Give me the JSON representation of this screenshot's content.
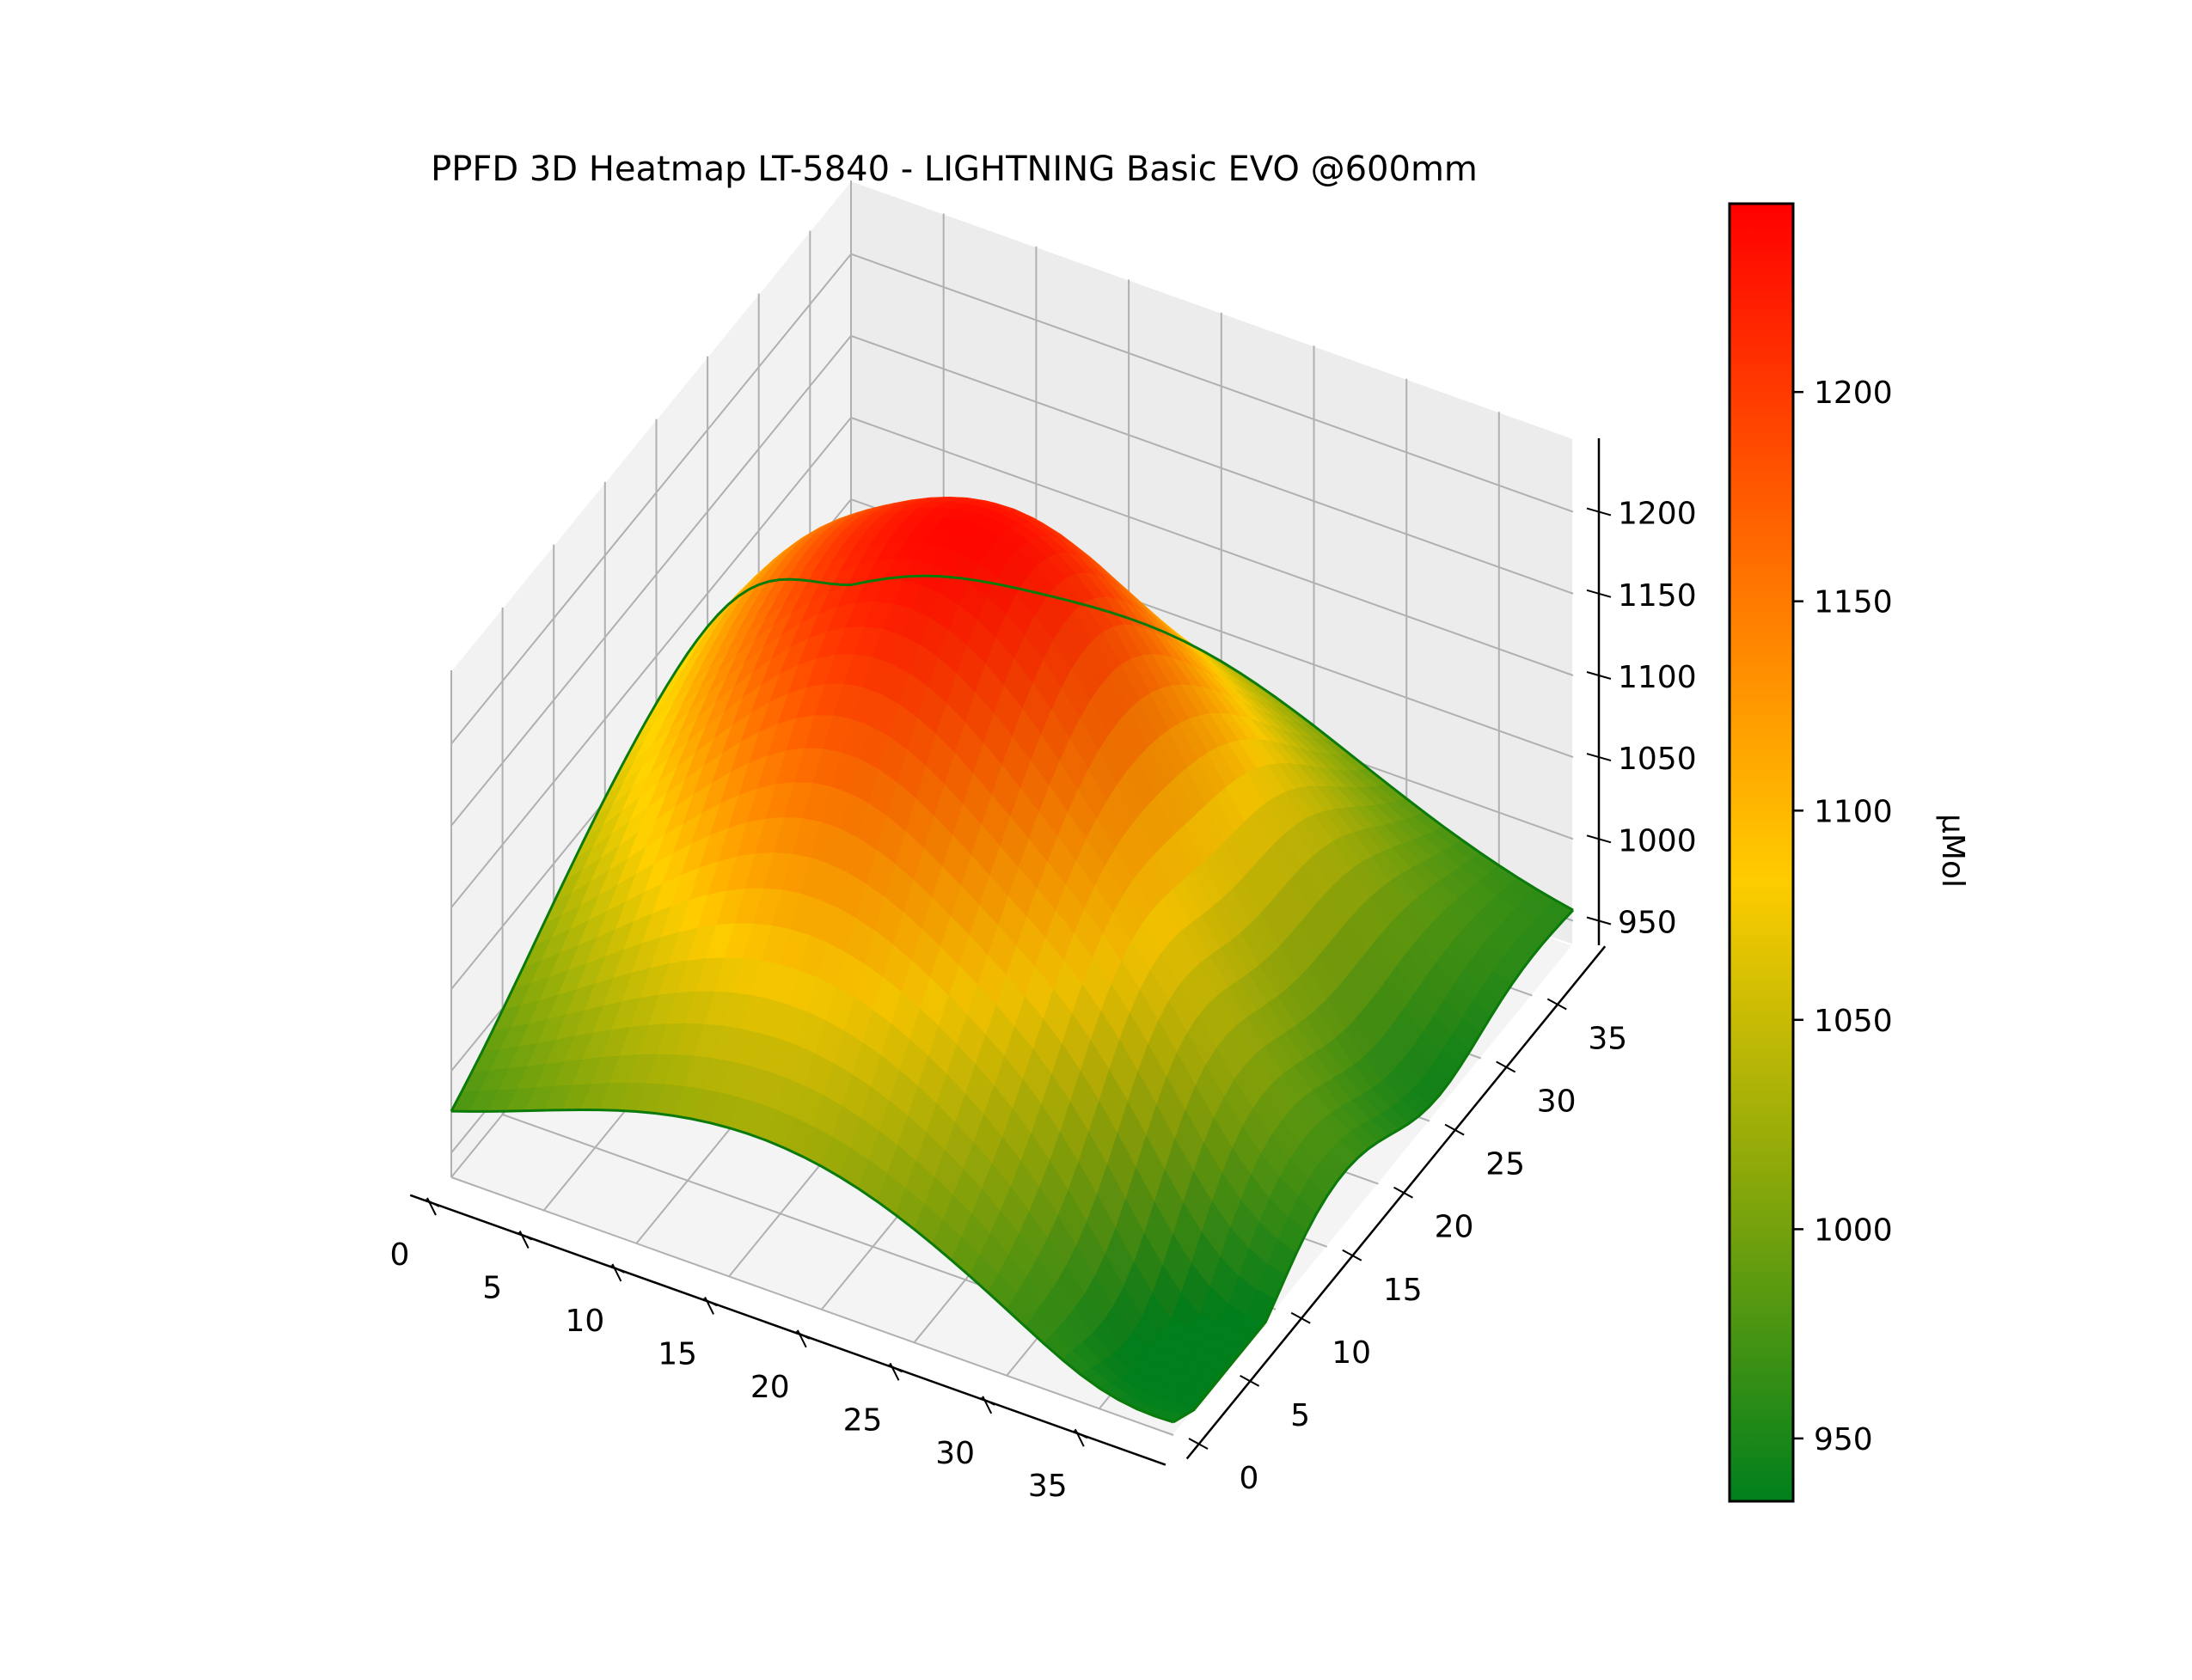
{
  "chart_data": {
    "type": "surface3d",
    "title": "PPFD 3D Heatmap LT-5840 - LIGHTNING Basic EVO @600mm",
    "x_ticks": [
      "0",
      "5",
      "10",
      "15",
      "20",
      "25",
      "30",
      "35"
    ],
    "y_ticks": [
      "0",
      "5",
      "10",
      "15",
      "20",
      "25",
      "30",
      "35"
    ],
    "z_ticks": [
      "950",
      "1000",
      "1050",
      "1100",
      "1150",
      "1200"
    ],
    "xlim": [
      0,
      39
    ],
    "ylim": [
      0,
      39
    ],
    "zlim": [
      935,
      1245
    ],
    "grid": true,
    "colorbar": {
      "label": "μMol",
      "range": [
        935,
        1245
      ],
      "ticks": [
        "950",
        "1000",
        "1050",
        "1100",
        "1150",
        "1200"
      ],
      "colors": [
        "#007f1c",
        "#cfc100",
        "#ffcc00",
        "#ff6a00",
        "#ff0000"
      ]
    },
    "surface": {
      "model": "sampled on a 40x40 grid (x 0-39, y 0-39); z = 935 + 310 * F(x,y)",
      "min_z": 935,
      "max_z": 1245,
      "edge_color": "#0a7a0a"
    }
  }
}
